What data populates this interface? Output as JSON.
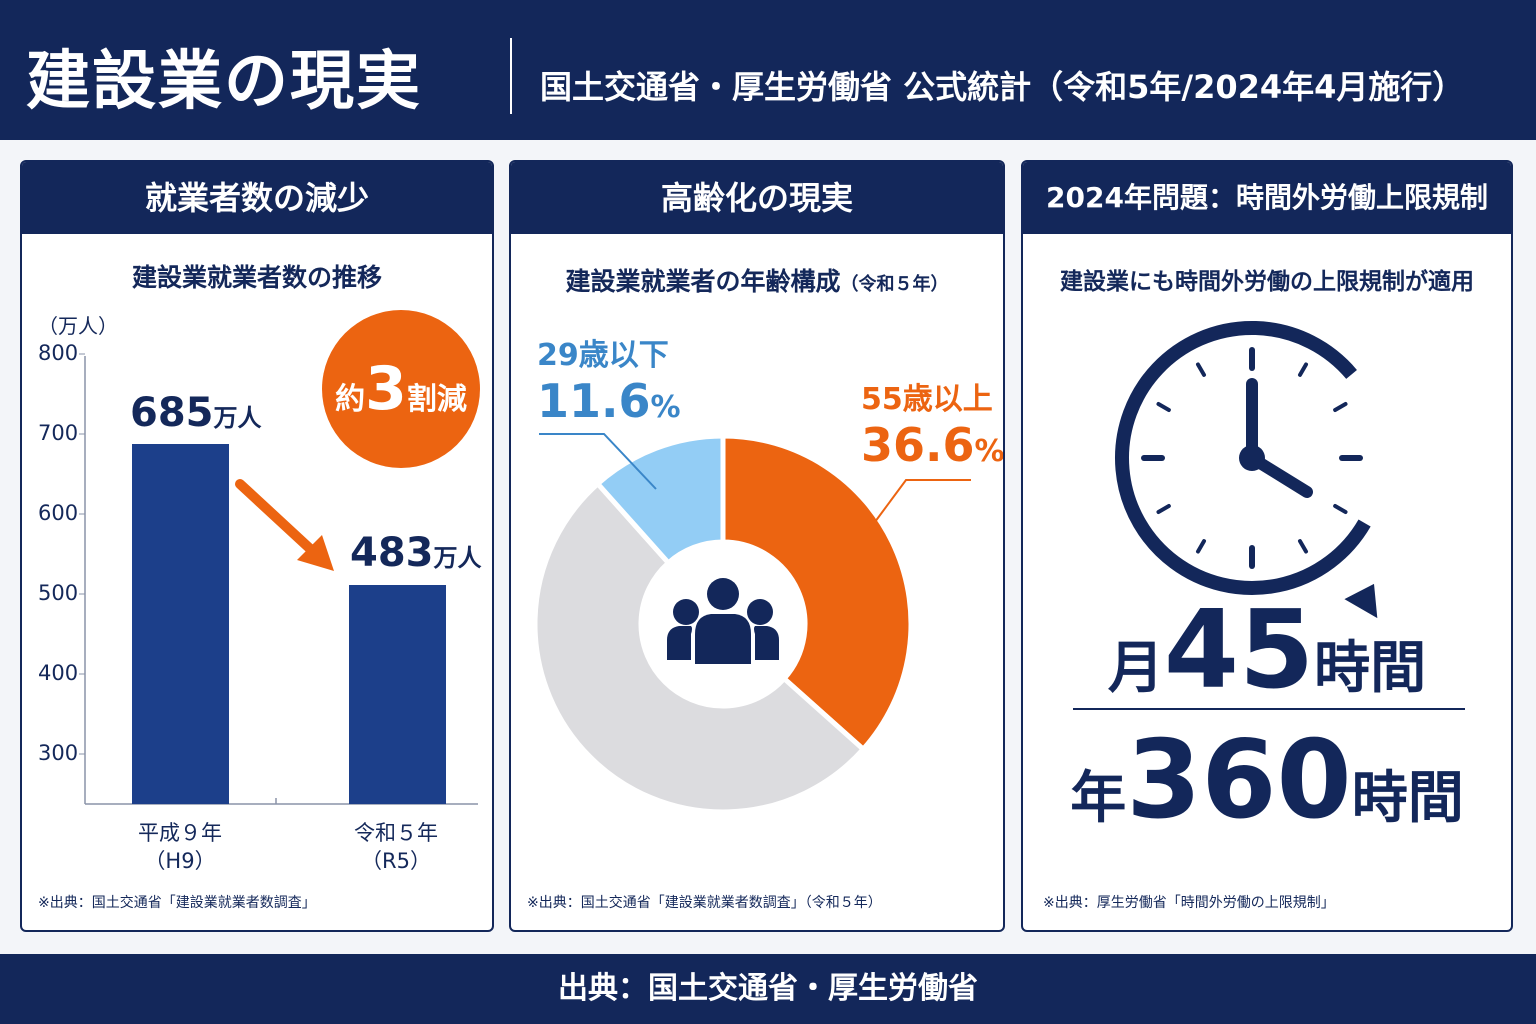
{
  "header": {
    "title": "建設業の現実",
    "subtitle": "国土交通省・厚生労働省 公式統計（令和5年/2024年4月施行）"
  },
  "panel1": {
    "heading": "就業者数の減少",
    "chart_title": "建設業就業者数の推移",
    "unit_label": "（万人）",
    "badge_prefix": "約",
    "badge_number": "3",
    "badge_suffix": "割減",
    "bar1_value": "685",
    "bar1_unit": "万人",
    "bar2_value": "483",
    "bar2_unit": "万人",
    "cat1_line1": "平成９年",
    "cat1_line2": "（H9）",
    "cat2_line1": "令和５年",
    "cat2_line2": "（R5）",
    "source": "※出典：国土交通省「建設業就業者数調査」"
  },
  "panel2": {
    "heading": "高齢化の現実",
    "chart_title": "建設業就業者の年齢構成",
    "chart_title_suffix": "（令和５年）",
    "young_label": "29歳以下",
    "young_pct": "11.6",
    "old_label": "55歳以上",
    "old_pct": "36.6",
    "pct_sign": "%",
    "source": "※出典：国土交通省「建設業就業者数調査」（令和５年）"
  },
  "panel3": {
    "heading": "2024年問題：時間外労働上限規制",
    "subtitle": "建設業にも時間外労働の上限規制が適用",
    "month_prefix": "月",
    "month_hours": "45",
    "month_suffix": "時間",
    "year_prefix": "年",
    "year_hours": "360",
    "year_suffix": "時間",
    "source": "※出典：厚生労働省「時間外労働の上限規制」"
  },
  "footer": {
    "text": "出典：国土交通省・厚生労働省"
  },
  "colors": {
    "navy": "#13275a",
    "bar": "#1c3f8a",
    "orange": "#ec6411",
    "light_blue": "#93cdf5",
    "gray": "#dcdcdf",
    "blue_text": "#3a86c8"
  },
  "icons": [
    "people-group-icon",
    "clock-icon",
    "arrow-down-right-icon"
  ],
  "chart_data": [
    {
      "type": "bar",
      "title": "建設業就業者数の推移",
      "ylabel": "（万人）",
      "categories": [
        "平成９年（H9）",
        "令和５年（R5）"
      ],
      "values": [
        685,
        483
      ],
      "ylim": [
        300,
        800
      ],
      "yticks": [
        800,
        700,
        600,
        500,
        400,
        300
      ]
    },
    {
      "type": "pie",
      "title": "建設業就業者の年齢構成（令和５年）",
      "slices": [
        {
          "label": "55歳以上",
          "value": 36.6
        },
        {
          "label": "",
          "value": 51.8
        },
        {
          "label": "29歳以下",
          "value": 11.6
        }
      ]
    }
  ]
}
